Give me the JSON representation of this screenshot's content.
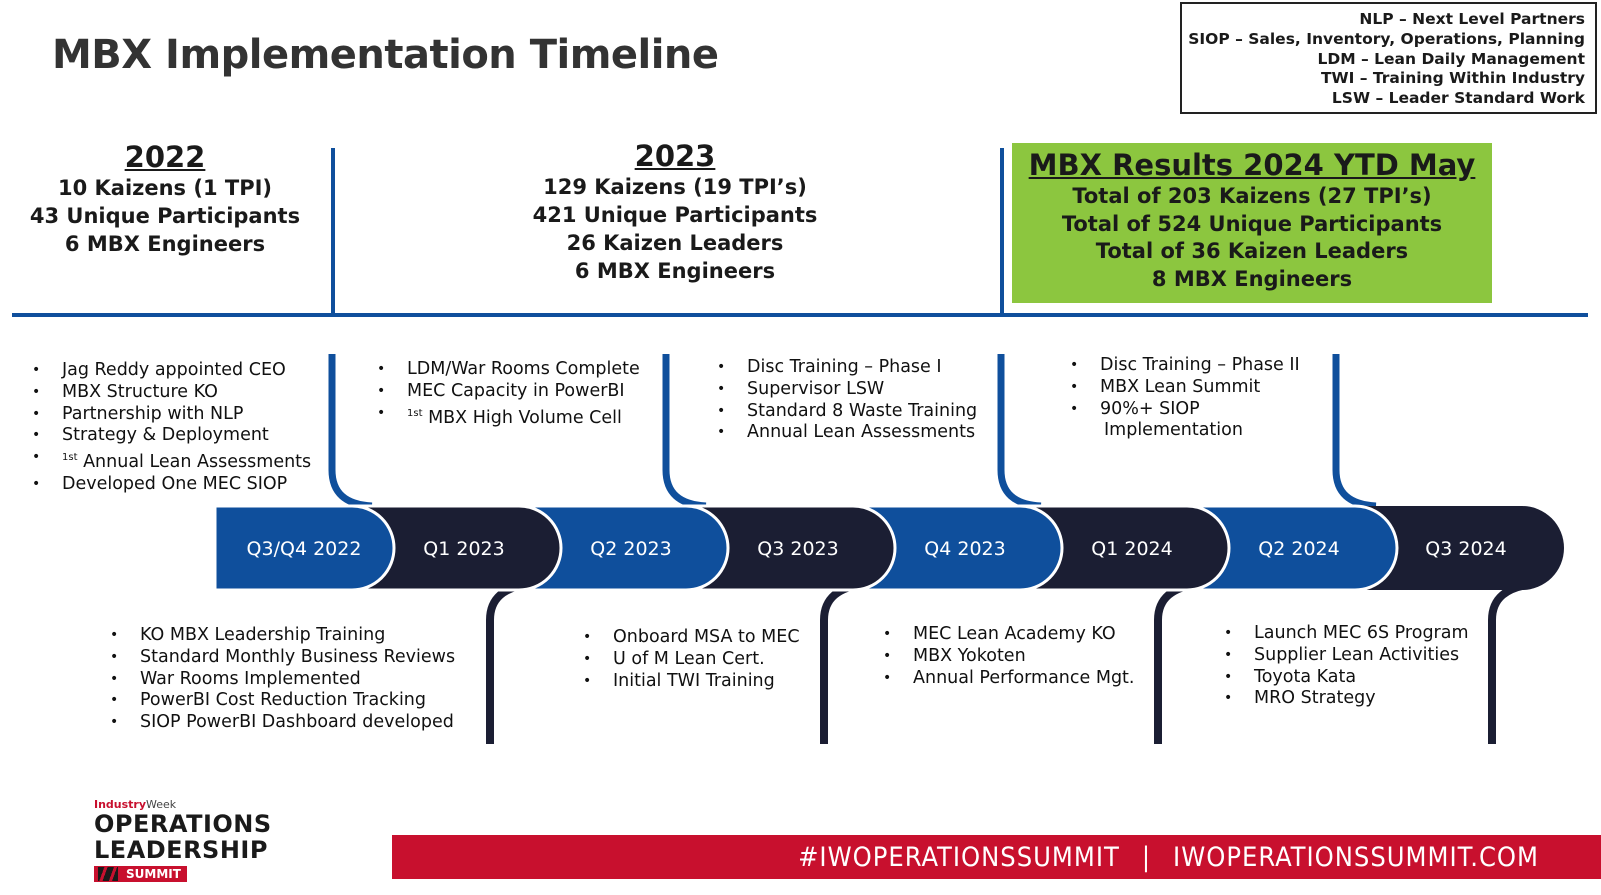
{
  "title": "MBX Implementation Timeline",
  "legend": [
    "NLP – Next Level Partners",
    "SIOP – Sales, Inventory, Operations, Planning",
    "LDM – Lean Daily Management",
    "TWI – Training Within Industry",
    "LSW – Leader Standard Work"
  ],
  "years": {
    "y2022": {
      "year": "2022",
      "lines": [
        "10 Kaizens (1 TPI)",
        "43 Unique Participants",
        "6 MBX Engineers"
      ]
    },
    "y2023": {
      "year": "2023",
      "lines": [
        "129 Kaizens (19 TPI’s)",
        "421 Unique Participants",
        "26 Kaizen Leaders",
        "6 MBX Engineers"
      ]
    },
    "y2024": {
      "year": "MBX Results 2024 YTD May",
      "lines": [
        "Total of 203 Kaizens (27 TPI’s)",
        "Total of 524 Unique Participants",
        "Total of 36 Kaizen Leaders",
        "8 MBX Engineers"
      ]
    }
  },
  "quarters": [
    "Q3/Q4 2022",
    "Q1 2023",
    "Q2 2023",
    "Q3 2023",
    "Q4 2023",
    "Q1 2024",
    "Q2 2024",
    "Q3 2024"
  ],
  "colors": {
    "blue": "#0f4f9c",
    "navy": "#1b1e33",
    "green": "#8cc63f",
    "red": "#c8102e",
    "line": "#0f4f9c"
  },
  "top_lists": {
    "q34_2022": [
      "Jag Reddy appointed CEO",
      "MBX Structure KO",
      "Partnership with NLP",
      "Strategy & Deployment",
      "Annual Lean Assessments",
      "Developed One MEC SIOP"
    ],
    "q34_2022_sup": "1st",
    "q2_2023": [
      "LDM/War Rooms Complete",
      "MEC Capacity in PowerBI",
      "MBX High Volume Cell"
    ],
    "q2_2023_sup": "1st",
    "q4_2023": [
      "Disc Training – Phase I",
      "Supervisor LSW",
      "Standard 8 Waste Training",
      "Annual Lean Assessments"
    ],
    "q2_2024": [
      "Disc Training – Phase II",
      "MBX Lean Summit",
      "90%+ SIOP",
      "Implementation"
    ]
  },
  "bottom_lists": {
    "q1_2023": [
      "KO MBX Leadership Training",
      "Standard Monthly Business Reviews",
      "War Rooms Implemented",
      "PowerBI Cost Reduction Tracking",
      "SIOP PowerBI Dashboard developed"
    ],
    "q3_2023": [
      "Onboard MSA to MEC",
      "U of M Lean Cert.",
      "Initial TWI Training"
    ],
    "q1_2024": [
      "MEC Lean Academy KO",
      "MBX Yokoten",
      "Annual Performance Mgt."
    ],
    "q3_2024": [
      "Launch MEC 6S Program",
      "Supplier Lean Activities",
      "Toyota Kata",
      "MRO Strategy"
    ]
  },
  "banner": {
    "left": "#IWOPERATIONSSUMMIT",
    "sep": "|",
    "right": "IWOPERATIONSSUMMIT.COM"
  },
  "logo": {
    "brand_a": "Industry",
    "brand_b": "Week",
    "line1": "OPERATIONS",
    "line2": "LEADERSHIP",
    "line3": "SUMMIT"
  }
}
